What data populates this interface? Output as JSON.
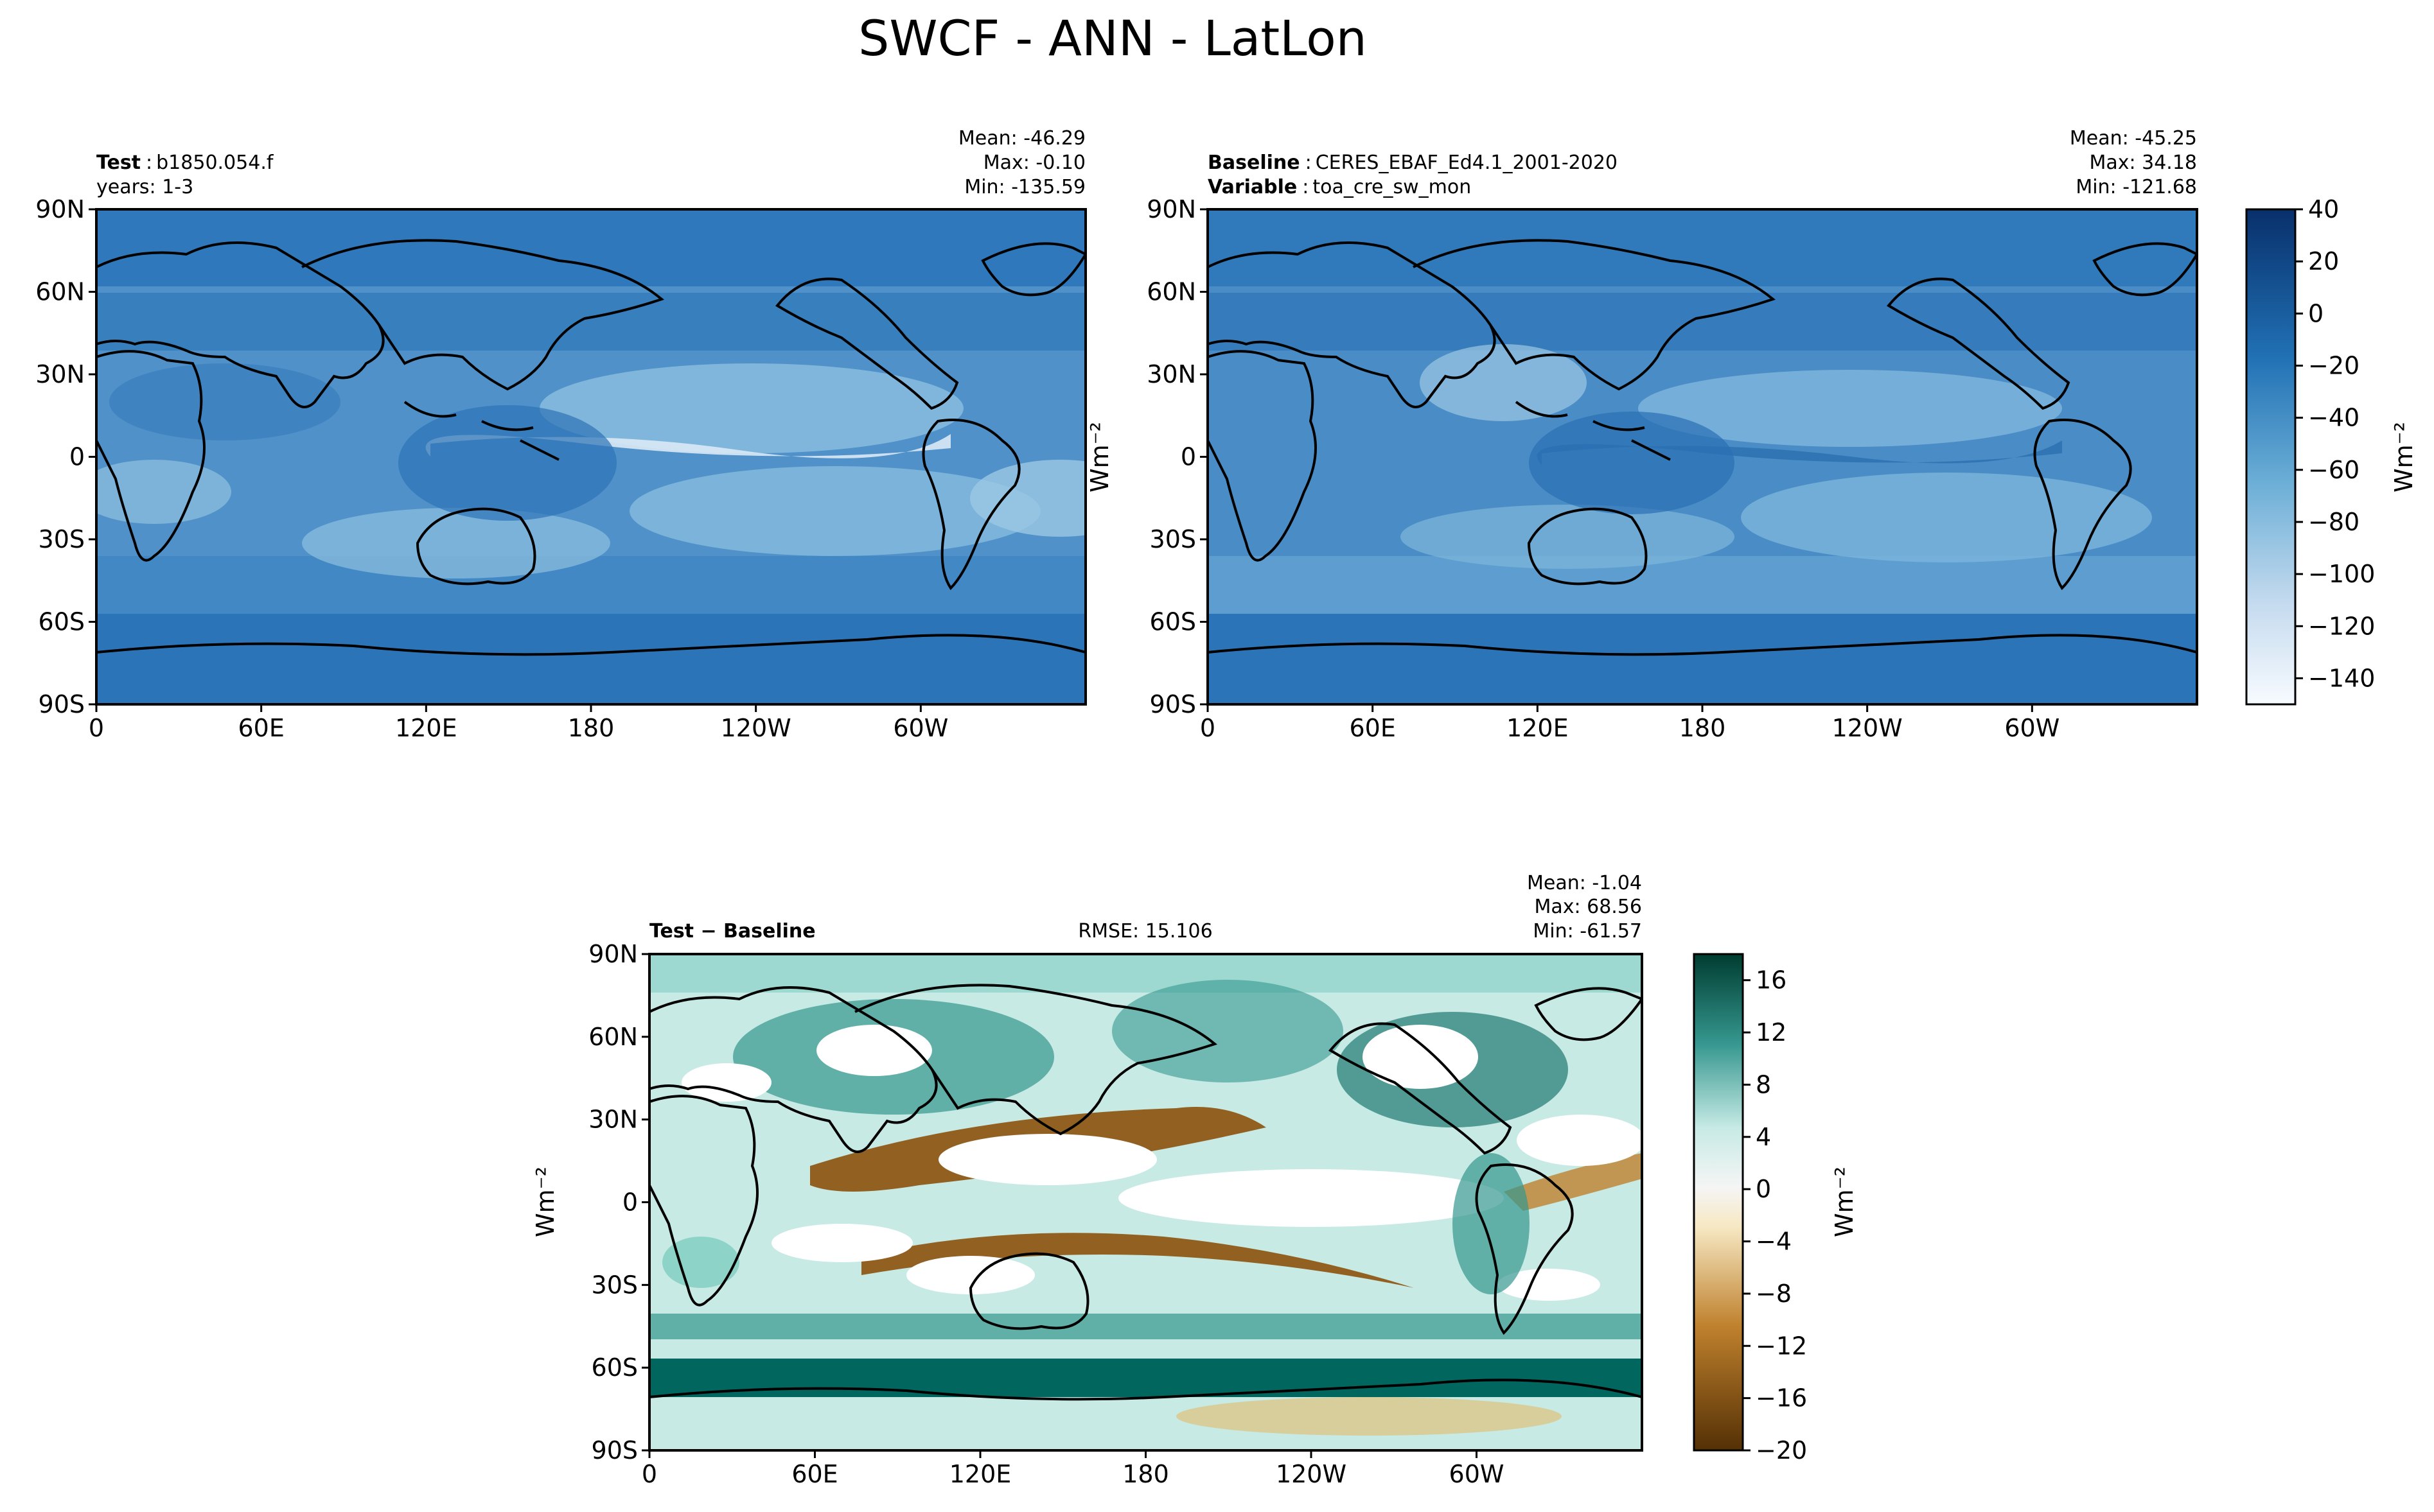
{
  "figure": {
    "title": "SWCF - ANN - LatLon"
  },
  "chart_data": [
    {
      "type": "heatmap",
      "name": "test",
      "header_left": [
        {
          "bold": "Test",
          "text": "b1850.054.f"
        },
        {
          "bold": "",
          "text": "years: 1-3"
        }
      ],
      "header_center": "",
      "stats": [
        "Mean: -46.29",
        "Max: -0.10",
        "Min: -135.59"
      ],
      "xticks": [
        "0",
        "60E",
        "120E",
        "180",
        "120W",
        "60W"
      ],
      "yticks": [
        "90N",
        "60N",
        "30N",
        "0",
        "30S",
        "60S",
        "90S"
      ],
      "ylabel": "",
      "xlim": [
        0,
        360
      ],
      "ylim": [
        -90,
        90
      ],
      "colormap": "Blues_r",
      "colorbar": {
        "ticks": [
          "40",
          "20",
          "0",
          "−20",
          "−40",
          "−60",
          "−80",
          "−100",
          "−120",
          "−140"
        ],
        "label": "Wm⁻²",
        "range": [
          -150,
          40
        ]
      }
    },
    {
      "type": "heatmap",
      "name": "baseline",
      "header_left": [
        {
          "bold": "Baseline",
          "text": "CERES_EBAF_Ed4.1_2001-2020"
        },
        {
          "bold": "Variable",
          "text": "toa_cre_sw_mon"
        }
      ],
      "header_center": "",
      "stats": [
        "Mean: -45.25",
        "Max: 34.18",
        "Min: -121.68"
      ],
      "xticks": [
        "0",
        "60E",
        "120E",
        "180",
        "120W",
        "60W"
      ],
      "yticks": [
        "90N",
        "60N",
        "30N",
        "0",
        "30S",
        "60S",
        "90S"
      ],
      "ylabel": "Wm⁻²",
      "xlim": [
        0,
        360
      ],
      "ylim": [
        -90,
        90
      ],
      "colormap": "Blues_r"
    },
    {
      "type": "heatmap",
      "name": "difference",
      "header_left": [
        {
          "bold": "Test − Baseline",
          "text": ""
        }
      ],
      "header_center": "RMSE: 15.106",
      "stats": [
        "Mean: -1.04",
        "Max: 68.56",
        "Min: -61.57"
      ],
      "xticks": [
        "0",
        "60E",
        "120E",
        "180",
        "120W",
        "60W"
      ],
      "yticks": [
        "90N",
        "60N",
        "30N",
        "0",
        "30S",
        "60S",
        "90S"
      ],
      "ylabel": "Wm⁻²",
      "xlim": [
        0,
        360
      ],
      "ylim": [
        -90,
        90
      ],
      "colormap": "BrBG",
      "colorbar": {
        "ticks": [
          "16",
          "12",
          "8",
          "4",
          "0",
          "−4",
          "−8",
          "−12",
          "−16",
          "−20"
        ],
        "label": "Wm⁻²",
        "range": [
          -20,
          18
        ]
      }
    }
  ],
  "colors": {
    "blues": [
      "#f7fbff",
      "#deebf7",
      "#c6dbef",
      "#9ecae1",
      "#6baed6",
      "#4292c6",
      "#2171b5",
      "#08519c",
      "#08306b"
    ],
    "diverging": [
      "#543005",
      "#8c510a",
      "#bf812d",
      "#dfc27d",
      "#f6e8c3",
      "#f5f5f5",
      "#c7eae5",
      "#80cdc1",
      "#35978f",
      "#01665e",
      "#003c30"
    ]
  }
}
